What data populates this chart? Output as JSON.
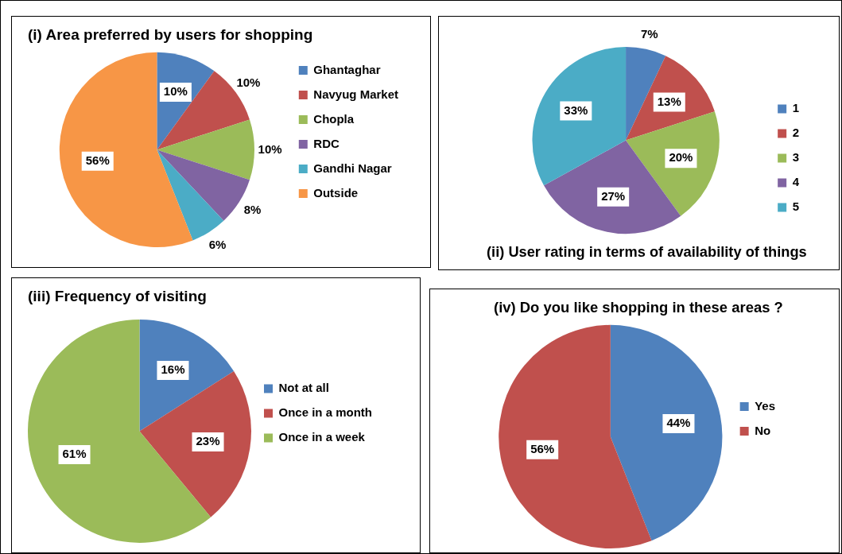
{
  "chart_data": [
    {
      "type": "pie",
      "title": "(i) Area preferred by users for shopping",
      "categories": [
        "Ghantaghar",
        "Navyug Market",
        "Chopla",
        "RDC",
        "Gandhi Nagar",
        "Outside"
      ],
      "values": [
        10,
        10,
        10,
        8,
        6,
        56
      ],
      "colors": [
        "#4f81bd",
        "#c0504d",
        "#9bbb59",
        "#8064a2",
        "#4bacc6",
        "#f79646"
      ],
      "value_labels": [
        "10%",
        "10%",
        "10%",
        "8%",
        "6%",
        "56%"
      ],
      "legend": "right"
    },
    {
      "type": "pie",
      "title": "(ii) User rating in terms of availability of things",
      "categories": [
        "1",
        "2",
        "3",
        "4",
        "5"
      ],
      "values": [
        7,
        13,
        20,
        27,
        33
      ],
      "colors": [
        "#4f81bd",
        "#c0504d",
        "#9bbb59",
        "#8064a2",
        "#4bacc6"
      ],
      "value_labels": [
        "7%",
        "13%",
        "20%",
        "27%",
        "33%"
      ],
      "legend": "right"
    },
    {
      "type": "pie",
      "title": "(iii) Frequency of visiting",
      "categories": [
        "Not at all",
        "Once in a month",
        "Once in a week"
      ],
      "values": [
        16,
        23,
        61
      ],
      "colors": [
        "#4f81bd",
        "#c0504d",
        "#9bbb59"
      ],
      "value_labels": [
        "16%",
        "23%",
        "61%"
      ],
      "legend": "right"
    },
    {
      "type": "pie",
      "title": "(iv) Do you like shopping in these areas ?",
      "categories": [
        "Yes",
        "No"
      ],
      "values": [
        44,
        56
      ],
      "colors": [
        "#4f81bd",
        "#c0504d"
      ],
      "value_labels": [
        "44%",
        "56%"
      ],
      "legend": "right"
    }
  ]
}
